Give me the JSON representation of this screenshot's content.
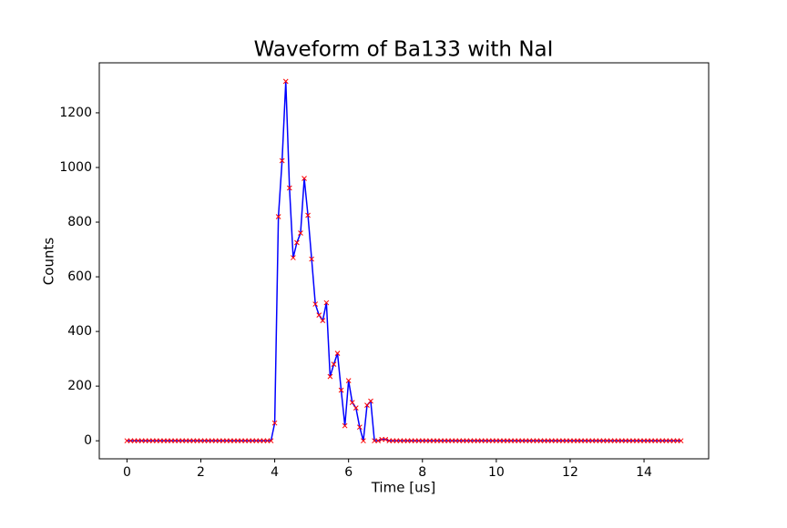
{
  "chart_data": {
    "type": "line",
    "title": "Waveform of Ba133 with NaI",
    "x_label": "Time [us]",
    "y_label": "Counts",
    "x": [
      0,
      0.1,
      0.2,
      0.3,
      0.4,
      0.5,
      0.6,
      0.7,
      0.8,
      0.9,
      1,
      1.1,
      1.2,
      1.3,
      1.4,
      1.5,
      1.6,
      1.7,
      1.8,
      1.9,
      2,
      2.1,
      2.2,
      2.3,
      2.4,
      2.5,
      2.6,
      2.7,
      2.8,
      2.9,
      3,
      3.1,
      3.2,
      3.3,
      3.4,
      3.5,
      3.6,
      3.7,
      3.8,
      3.9,
      4,
      4.1,
      4.2,
      4.3,
      4.4,
      4.5,
      4.6,
      4.7,
      4.8,
      4.9,
      5,
      5.1,
      5.2,
      5.3,
      5.4,
      5.5,
      5.6,
      5.7,
      5.8,
      5.9,
      6,
      6.1,
      6.2,
      6.3,
      6.4,
      6.5,
      6.6,
      6.7,
      6.8,
      6.9,
      7,
      7.1,
      7.2,
      7.3,
      7.4,
      7.5,
      7.6,
      7.7,
      7.8,
      7.9,
      8,
      8.1,
      8.2,
      8.3,
      8.4,
      8.5,
      8.6,
      8.7,
      8.8,
      8.9,
      9,
      9.1,
      9.2,
      9.3,
      9.4,
      9.5,
      9.6,
      9.7,
      9.8,
      9.9,
      10,
      10.1,
      10.2,
      10.3,
      10.4,
      10.5,
      10.6,
      10.7,
      10.8,
      10.9,
      11,
      11.1,
      11.2,
      11.3,
      11.4,
      11.5,
      11.6,
      11.7,
      11.8,
      11.9,
      12,
      12.1,
      12.2,
      12.3,
      12.4,
      12.5,
      12.6,
      12.7,
      12.8,
      12.9,
      13,
      13.1,
      13.2,
      13.3,
      13.4,
      13.5,
      13.6,
      13.7,
      13.8,
      13.9,
      14,
      14.1,
      14.2,
      14.3,
      14.4,
      14.5,
      14.6,
      14.7,
      14.8,
      14.9,
      15
    ],
    "series": [
      {
        "color": "#0000ff",
        "marker_color": "#ff0000",
        "values": [
          0,
          0,
          0,
          0,
          0,
          0,
          0,
          0,
          0,
          0,
          0,
          0,
          0,
          0,
          0,
          0,
          0,
          0,
          0,
          0,
          0,
          0,
          0,
          0,
          0,
          0,
          0,
          0,
          0,
          0,
          0,
          0,
          0,
          0,
          0,
          0,
          0,
          0,
          0,
          0,
          65,
          820,
          1025,
          1315,
          925,
          670,
          725,
          760,
          960,
          825,
          665,
          500,
          460,
          440,
          505,
          235,
          280,
          320,
          185,
          55,
          220,
          140,
          120,
          50,
          0,
          130,
          145,
          0,
          0,
          5,
          5,
          0,
          0,
          0,
          0,
          0,
          0,
          0,
          0,
          0,
          0,
          0,
          0,
          0,
          0,
          0,
          0,
          0,
          0,
          0,
          0,
          0,
          0,
          0,
          0,
          0,
          0,
          0,
          0,
          0,
          0,
          0,
          0,
          0,
          0,
          0,
          0,
          0,
          0,
          0,
          0,
          0,
          0,
          0,
          0,
          0,
          0,
          0,
          0,
          0,
          0,
          0,
          0,
          0,
          0,
          0,
          0,
          0,
          0,
          0,
          0,
          0,
          0,
          0,
          0,
          0,
          0,
          0,
          0,
          0,
          0,
          0,
          0,
          0,
          0,
          0,
          0,
          0,
          0,
          0,
          0
        ]
      }
    ],
    "xlim": [
      -0.75,
      15.75
    ],
    "ylim": [
      -66,
      1383
    ],
    "xticks": [
      0,
      2,
      4,
      6,
      8,
      10,
      12,
      14
    ],
    "yticks": [
      0,
      200,
      400,
      600,
      800,
      1000,
      1200
    ]
  }
}
